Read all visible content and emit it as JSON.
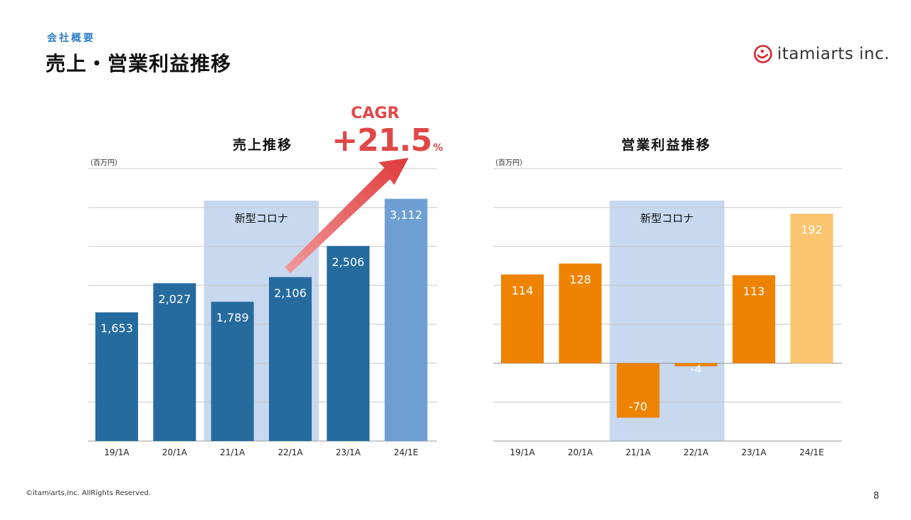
{
  "header": {
    "section": "会社概要",
    "title": "売上・営業利益推移",
    "logo_text": "itamiarts inc."
  },
  "footer": {
    "copyright": "©itamiarts,Inc. AllRights Reserved.",
    "page": "8"
  },
  "colors": {
    "sales_bar": "#266b9e",
    "sales_forecast": "#6d9fd3",
    "profit_bar": "#ee8302",
    "profit_forecast": "#fbc46f",
    "covid_band": "#c7d8ef",
    "cagr_red": "#e04848"
  },
  "cagr": {
    "label": "CAGR",
    "value": "+21.5",
    "unit": "%"
  },
  "chart_data": [
    {
      "type": "bar",
      "title": "売上推移",
      "unit_label": "（百万円）",
      "categories": [
        "19/1A",
        "20/1A",
        "21/1A",
        "22/1A",
        "23/1A",
        "24/1E"
      ],
      "values": [
        1653,
        2027,
        1789,
        2106,
        2506,
        3112
      ],
      "labels": [
        "1,653",
        "2,027",
        "1,789",
        "2,106",
        "2,506",
        "3,112"
      ],
      "forecast_index": 5,
      "ylim": [
        0,
        3500
      ],
      "grid": true,
      "band": {
        "label": "新型コロナ",
        "from_index": 2,
        "to_index": 3
      }
    },
    {
      "type": "bar",
      "title": "営業利益推移",
      "unit_label": "（百万円）",
      "categories": [
        "19/1A",
        "20/1A",
        "21/1A",
        "22/1A",
        "23/1A",
        "24/1E"
      ],
      "values": [
        114,
        128,
        -70,
        -4,
        113,
        192
      ],
      "labels": [
        "114",
        "128",
        "-70",
        "-4",
        "113",
        "192"
      ],
      "forecast_index": 5,
      "ylim": [
        -100,
        250
      ],
      "grid": true,
      "band": {
        "label": "新型コロナ",
        "from_index": 2,
        "to_index": 3
      }
    }
  ]
}
